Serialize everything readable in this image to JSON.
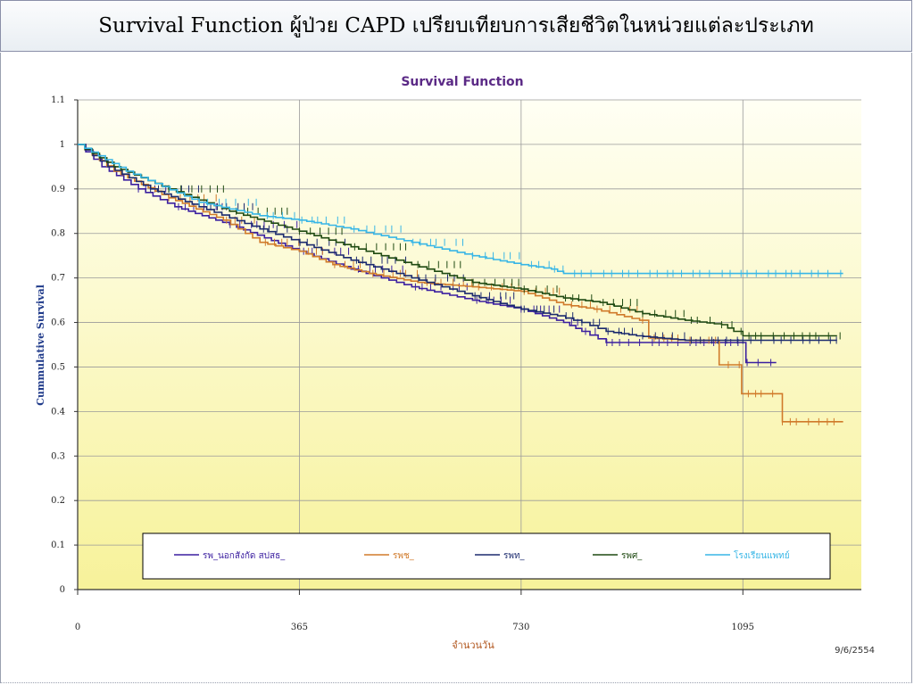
{
  "slide": {
    "title": "Survival Function ผู้ป่วย CAPD เปรียบเทียบการเสียชีวิตในหน่วยแต่ละประเภท"
  },
  "footnote": "9/6/2554",
  "colors": {
    "plot_bg_top": "#fffff4",
    "plot_bg_bottom": "#f7f29a",
    "grid": "#9a9a9a"
  },
  "chart_data": {
    "type": "line",
    "title": "Survival Function",
    "xlabel": "จำนวนวัน",
    "ylabel": "Cummulative Survival",
    "xlim": [
      0,
      1290
    ],
    "ylim": [
      0,
      1.1
    ],
    "x_ticks": [
      0,
      365,
      730,
      1095
    ],
    "y_ticks": [
      0,
      0.1,
      0.2,
      0.3,
      0.4,
      0.5,
      0.6,
      0.7,
      0.8,
      0.9,
      1,
      1.1
    ],
    "y_tick_labels": [
      "0",
      "0.1",
      "0.2",
      "0.3",
      "0.4",
      "0.5",
      "0.6",
      "0.7",
      "0.8",
      "0.9",
      "1",
      "1.1"
    ],
    "grid": true,
    "legend_position": "bottom-inside",
    "series": [
      {
        "name": "รพ_นอกสังกัด สปสธ_",
        "color": "#3b1fa0",
        "points": [
          [
            0,
            1.0
          ],
          [
            40,
            0.95
          ],
          [
            100,
            0.9
          ],
          [
            160,
            0.86
          ],
          [
            250,
            0.82
          ],
          [
            365,
            0.76
          ],
          [
            450,
            0.72
          ],
          [
            550,
            0.68
          ],
          [
            650,
            0.65
          ],
          [
            730,
            0.63
          ],
          [
            800,
            0.6
          ],
          [
            830,
            0.58
          ],
          [
            870,
            0.555
          ],
          [
            950,
            0.555
          ],
          [
            1000,
            0.555
          ],
          [
            1095,
            0.555
          ],
          [
            1100,
            0.51
          ],
          [
            1150,
            0.51
          ]
        ],
        "censor_start": 100,
        "censor_end": 1150
      },
      {
        "name": "รพช_",
        "color": "#d07a2a",
        "points": [
          [
            0,
            1.0
          ],
          [
            60,
            0.94
          ],
          [
            150,
            0.88
          ],
          [
            240,
            0.83
          ],
          [
            300,
            0.78
          ],
          [
            365,
            0.76
          ],
          [
            420,
            0.73
          ],
          [
            480,
            0.71
          ],
          [
            560,
            0.69
          ],
          [
            650,
            0.68
          ],
          [
            730,
            0.67
          ],
          [
            800,
            0.64
          ],
          [
            850,
            0.63
          ],
          [
            925,
            0.605
          ],
          [
            940,
            0.565
          ],
          [
            1000,
            0.56
          ],
          [
            1055,
            0.56
          ],
          [
            1056,
            0.505
          ],
          [
            1090,
            0.505
          ],
          [
            1093,
            0.44
          ],
          [
            1158,
            0.44
          ],
          [
            1160,
            0.377
          ],
          [
            1260,
            0.377
          ]
        ],
        "censor_start": 150,
        "censor_end": 1260
      },
      {
        "name": "รพท_",
        "color": "#1b2a6e",
        "points": [
          [
            0,
            1.0
          ],
          [
            50,
            0.95
          ],
          [
            120,
            0.9
          ],
          [
            200,
            0.86
          ],
          [
            300,
            0.81
          ],
          [
            365,
            0.78
          ],
          [
            450,
            0.74
          ],
          [
            550,
            0.7
          ],
          [
            650,
            0.66
          ],
          [
            730,
            0.63
          ],
          [
            790,
            0.615
          ],
          [
            830,
            0.6
          ],
          [
            870,
            0.58
          ],
          [
            920,
            0.57
          ],
          [
            1000,
            0.56
          ],
          [
            1095,
            0.56
          ],
          [
            1160,
            0.56
          ],
          [
            1250,
            0.56
          ]
        ],
        "censor_start": 120,
        "censor_end": 1250
      },
      {
        "name": "รพศ_",
        "color": "#1f4a12",
        "points": [
          [
            0,
            1.0
          ],
          [
            60,
            0.95
          ],
          [
            150,
            0.9
          ],
          [
            250,
            0.85
          ],
          [
            365,
            0.805
          ],
          [
            450,
            0.77
          ],
          [
            550,
            0.73
          ],
          [
            650,
            0.69
          ],
          [
            730,
            0.675
          ],
          [
            800,
            0.655
          ],
          [
            860,
            0.645
          ],
          [
            930,
            0.62
          ],
          [
            1000,
            0.605
          ],
          [
            1060,
            0.595
          ],
          [
            1080,
            0.58
          ],
          [
            1095,
            0.57
          ],
          [
            1150,
            0.57
          ],
          [
            1250,
            0.57
          ]
        ],
        "censor_start": 150,
        "censor_end": 1260
      },
      {
        "name": "โรงเรียนแพทย์",
        "color": "#38b6e6",
        "points": [
          [
            0,
            1.0
          ],
          [
            80,
            0.94
          ],
          [
            200,
            0.87
          ],
          [
            300,
            0.84
          ],
          [
            365,
            0.83
          ],
          [
            450,
            0.81
          ],
          [
            550,
            0.78
          ],
          [
            650,
            0.75
          ],
          [
            730,
            0.73
          ],
          [
            780,
            0.72
          ],
          [
            800,
            0.71
          ],
          [
            950,
            0.71
          ],
          [
            1095,
            0.71
          ],
          [
            1260,
            0.71
          ]
        ],
        "censor_start": 200,
        "censor_end": 1260
      }
    ]
  }
}
